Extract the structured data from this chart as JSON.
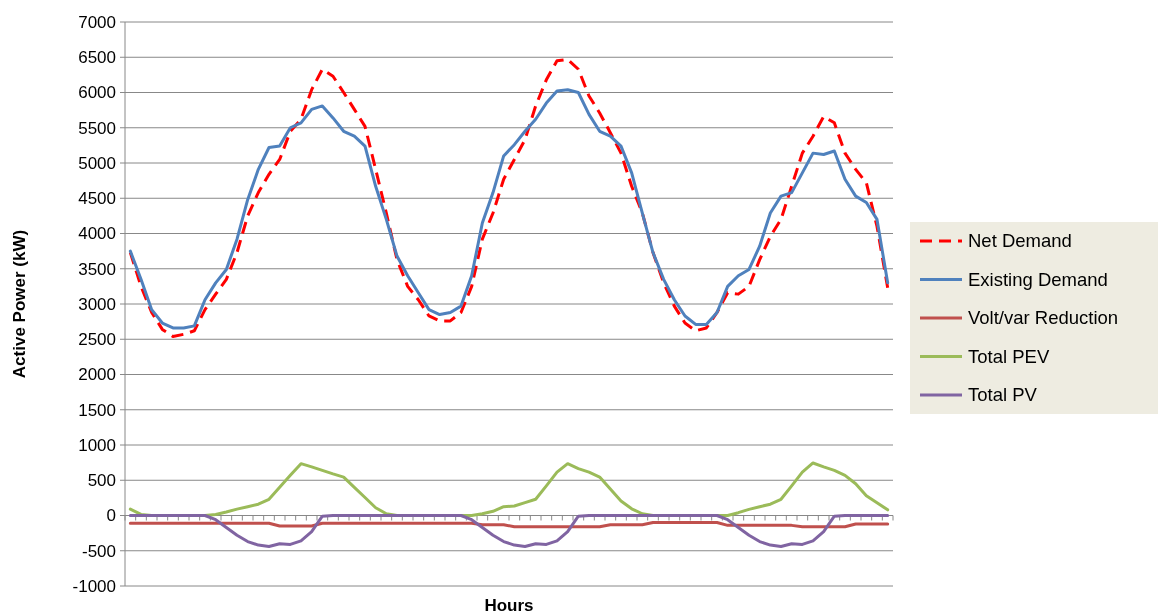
{
  "chart_data": {
    "type": "line",
    "xlabel": "Hours",
    "ylabel": "Active Power (kW)",
    "categories": [
      null,
      null,
      null,
      null,
      null,
      null,
      null,
      null,
      null,
      null,
      null,
      null,
      null,
      null,
      null,
      null,
      null,
      null,
      null,
      null,
      null,
      null,
      null,
      null,
      null,
      null,
      null,
      null,
      null,
      null,
      null,
      null,
      null,
      null,
      null,
      null,
      null,
      null,
      null,
      null,
      null,
      null,
      null,
      null,
      null,
      null,
      null,
      null,
      null,
      null,
      null,
      null,
      null,
      null,
      null,
      null,
      null,
      null,
      null,
      null,
      null,
      null,
      null,
      null,
      null,
      null,
      null,
      null,
      null,
      null,
      null,
      null
    ],
    "ylim": [
      -1000,
      7000
    ],
    "yticks": [
      -1000,
      -500,
      0,
      500,
      1000,
      1500,
      2000,
      2500,
      3000,
      3500,
      4000,
      4500,
      5000,
      5500,
      6000,
      6500,
      7000
    ],
    "grid": "y",
    "legend": "right",
    "marker": "none",
    "series": [
      {
        "name": "Net Demand",
        "color": "#ff0000",
        "line_style": "dashed",
        "values": [
          3730,
          3250,
          2880,
          2640,
          2540,
          2570,
          2620,
          2920,
          3140,
          3350,
          3730,
          4250,
          4580,
          4840,
          5050,
          5450,
          5620,
          6040,
          6330,
          6230,
          6000,
          5760,
          5520,
          4910,
          4290,
          3630,
          3250,
          3060,
          2830,
          2760,
          2760,
          2880,
          3250,
          3920,
          4290,
          4770,
          5050,
          5330,
          5810,
          6180,
          6450,
          6470,
          6330,
          5950,
          5710,
          5430,
          5140,
          4670,
          4290,
          3730,
          3300,
          2970,
          2730,
          2620,
          2660,
          2880,
          3160,
          3140,
          3250,
          3630,
          3960,
          4200,
          4670,
          5140,
          5380,
          5660,
          5570,
          5140,
          4910,
          4720,
          4100,
          3230
        ]
      },
      {
        "name": "Existing Demand",
        "color": "#4f81bd",
        "line_style": "solid",
        "values": [
          3750,
          3350,
          2920,
          2730,
          2660,
          2660,
          2690,
          3060,
          3300,
          3490,
          3920,
          4480,
          4910,
          5220,
          5240,
          5500,
          5570,
          5760,
          5810,
          5640,
          5450,
          5380,
          5240,
          4670,
          4200,
          3680,
          3400,
          3160,
          2920,
          2850,
          2880,
          2970,
          3400,
          4150,
          4580,
          5100,
          5260,
          5450,
          5620,
          5850,
          6020,
          6040,
          6000,
          5690,
          5450,
          5380,
          5240,
          4860,
          4290,
          3730,
          3350,
          3060,
          2830,
          2710,
          2710,
          2880,
          3250,
          3400,
          3490,
          3820,
          4290,
          4530,
          4580,
          4860,
          5140,
          5120,
          5170,
          4770,
          4530,
          4440,
          4200,
          3300
        ]
      },
      {
        "name": "Volt/var Reduction",
        "color": "#c0504d",
        "line_style": "solid",
        "values": [
          -110,
          -110,
          -110,
          -110,
          -110,
          -110,
          -110,
          -110,
          -110,
          -110,
          -110,
          -110,
          -110,
          -110,
          -150,
          -150,
          -150,
          -150,
          -110,
          -110,
          -110,
          -110,
          -110,
          -110,
          -110,
          -110,
          -110,
          -110,
          -110,
          -110,
          -110,
          -110,
          -110,
          -130,
          -130,
          -130,
          -160,
          -160,
          -160,
          -160,
          -160,
          -160,
          -160,
          -160,
          -160,
          -130,
          -130,
          -130,
          -130,
          -100,
          -100,
          -100,
          -100,
          -100,
          -100,
          -100,
          -140,
          -140,
          -140,
          -140,
          -140,
          -140,
          -140,
          -160,
          -160,
          -160,
          -160,
          -160,
          -120,
          -120,
          -120,
          -120
        ]
      },
      {
        "name": "Total PEV",
        "color": "#9bbb59",
        "line_style": "solid",
        "values": [
          90,
          15,
          0,
          0,
          0,
          0,
          0,
          0,
          15,
          50,
          90,
          125,
          160,
          230,
          400,
          570,
          735,
          690,
          640,
          590,
          545,
          400,
          255,
          110,
          25,
          0,
          0,
          0,
          0,
          0,
          0,
          0,
          0,
          25,
          60,
          125,
          135,
          183,
          230,
          420,
          615,
          735,
          665,
          615,
          545,
          375,
          205,
          95,
          25,
          0,
          0,
          0,
          0,
          0,
          0,
          0,
          0,
          40,
          87,
          125,
          160,
          230,
          420,
          615,
          745,
          690,
          640,
          570,
          450,
          280,
          180,
          80
        ]
      },
      {
        "name": "Total PV",
        "color": "#8064a2",
        "line_style": "solid",
        "values": [
          0,
          0,
          0,
          0,
          0,
          0,
          0,
          0,
          -60,
          -170,
          -280,
          -370,
          -420,
          -440,
          -400,
          -410,
          -360,
          -230,
          -10,
          0,
          0,
          0,
          0,
          0,
          0,
          0,
          0,
          0,
          0,
          0,
          0,
          0,
          -60,
          -170,
          -280,
          -370,
          -420,
          -440,
          -400,
          -410,
          -360,
          -230,
          -10,
          0,
          0,
          0,
          0,
          0,
          0,
          0,
          0,
          0,
          0,
          0,
          0,
          0,
          -60,
          -170,
          -280,
          -370,
          -420,
          -440,
          -400,
          -410,
          -360,
          -230,
          -10,
          0,
          0,
          0,
          0,
          0
        ]
      }
    ]
  }
}
